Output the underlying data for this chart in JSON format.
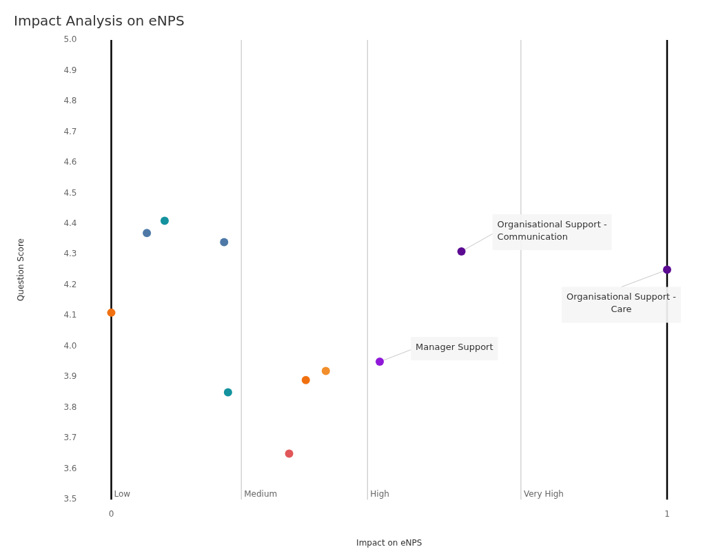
{
  "chart_data": {
    "type": "scatter",
    "title": "Impact Analysis on eNPS",
    "xlabel": "Impact on eNPS",
    "ylabel": "Question Score",
    "x": [
      0,
      0.064,
      0.096,
      0.203,
      0.21,
      0.32,
      0.35,
      0.386,
      0.483,
      0.63,
      1.0
    ],
    "values": [
      4.11,
      4.37,
      4.41,
      4.34,
      3.85,
      3.65,
      3.89,
      3.92,
      3.95,
      4.31,
      4.25
    ],
    "colors": [
      "#f07010",
      "#4e79a7",
      "#14929e",
      "#4e79a7",
      "#14929e",
      "#e15759",
      "#f07010",
      "#f28e2b",
      "#9018d8",
      "#5b0a91",
      "#5b0a91"
    ],
    "marker": "circle",
    "xlim": [
      0,
      1
    ],
    "xticks": [
      0,
      1
    ],
    "ylim": [
      3.5,
      5.0
    ],
    "yticks": [
      {
        "value": 3.5,
        "label": "3.5"
      },
      {
        "value": 3.6,
        "label": "3.6"
      },
      {
        "value": 3.7,
        "label": "3.7"
      },
      {
        "value": 3.8,
        "label": "3.8"
      },
      {
        "value": 3.9,
        "label": "3.9"
      },
      {
        "value": 4.0,
        "label": "4.0"
      },
      {
        "value": 4.1,
        "label": "4.1"
      },
      {
        "value": 4.2,
        "label": "4.2"
      },
      {
        "value": 4.3,
        "label": "4.3"
      },
      {
        "value": 4.4,
        "label": "4.4"
      },
      {
        "value": 4.5,
        "label": "4.5"
      },
      {
        "value": 4.6,
        "label": "4.6"
      },
      {
        "value": 4.7,
        "label": "4.7"
      },
      {
        "value": 4.8,
        "label": "4.8"
      },
      {
        "value": 4.9,
        "label": "4.9"
      },
      {
        "value": 5.0,
        "label": "5.0"
      }
    ],
    "grid": false,
    "legend": false,
    "ref_lines": [
      {
        "axis": "x",
        "value": 0,
        "label": "Low",
        "color": "#000000"
      },
      {
        "axis": "x",
        "value": 0.234,
        "label": "Medium",
        "color": "#c8c8c8"
      },
      {
        "axis": "x",
        "value": 0.461,
        "label": "High",
        "color": "#c8c8c8"
      },
      {
        "axis": "x",
        "value": 0.737,
        "label": "Very High",
        "color": "#c8c8c8"
      },
      {
        "axis": "x",
        "value": 1,
        "label": null,
        "color": "#000000"
      }
    ],
    "annotations": [
      {
        "text": "Manager Support",
        "x": 0.483,
        "y": 3.95
      },
      {
        "text": "Organisational Support - Communication",
        "x": 0.63,
        "y": 4.31
      },
      {
        "text": "Organisational Support - Care",
        "x": 1.0,
        "y": 4.25
      }
    ]
  }
}
